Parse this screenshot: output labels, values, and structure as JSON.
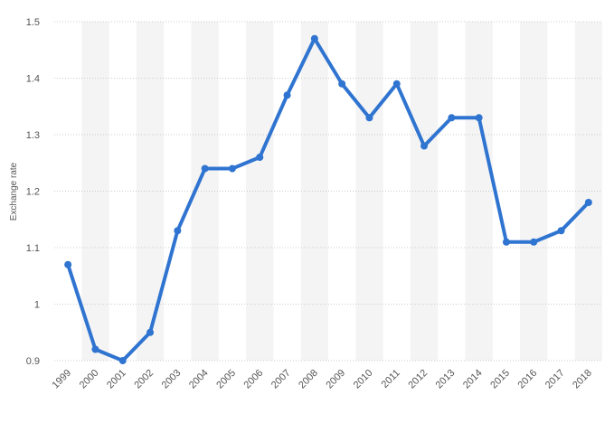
{
  "chart_data": {
    "type": "line",
    "y_label": "Exchange rate",
    "categories": [
      "1999",
      "2000",
      "2001",
      "2002",
      "2003",
      "2004",
      "2005",
      "2006",
      "2007",
      "2008",
      "2009",
      "2010",
      "2011",
      "2012",
      "2013",
      "2014",
      "2015",
      "2016",
      "2017",
      "2018"
    ],
    "values": [
      1.07,
      0.92,
      0.9,
      0.95,
      1.13,
      1.24,
      1.24,
      1.26,
      1.37,
      1.47,
      1.39,
      1.33,
      1.39,
      1.28,
      1.33,
      1.33,
      1.11,
      1.11,
      1.13,
      1.18
    ],
    "color": "#2f74d0",
    "ylim": [
      0.9,
      1.5
    ],
    "yticks": [
      0.9,
      1,
      1.1,
      1.2,
      1.3,
      1.4,
      1.5
    ],
    "grid": true
  }
}
